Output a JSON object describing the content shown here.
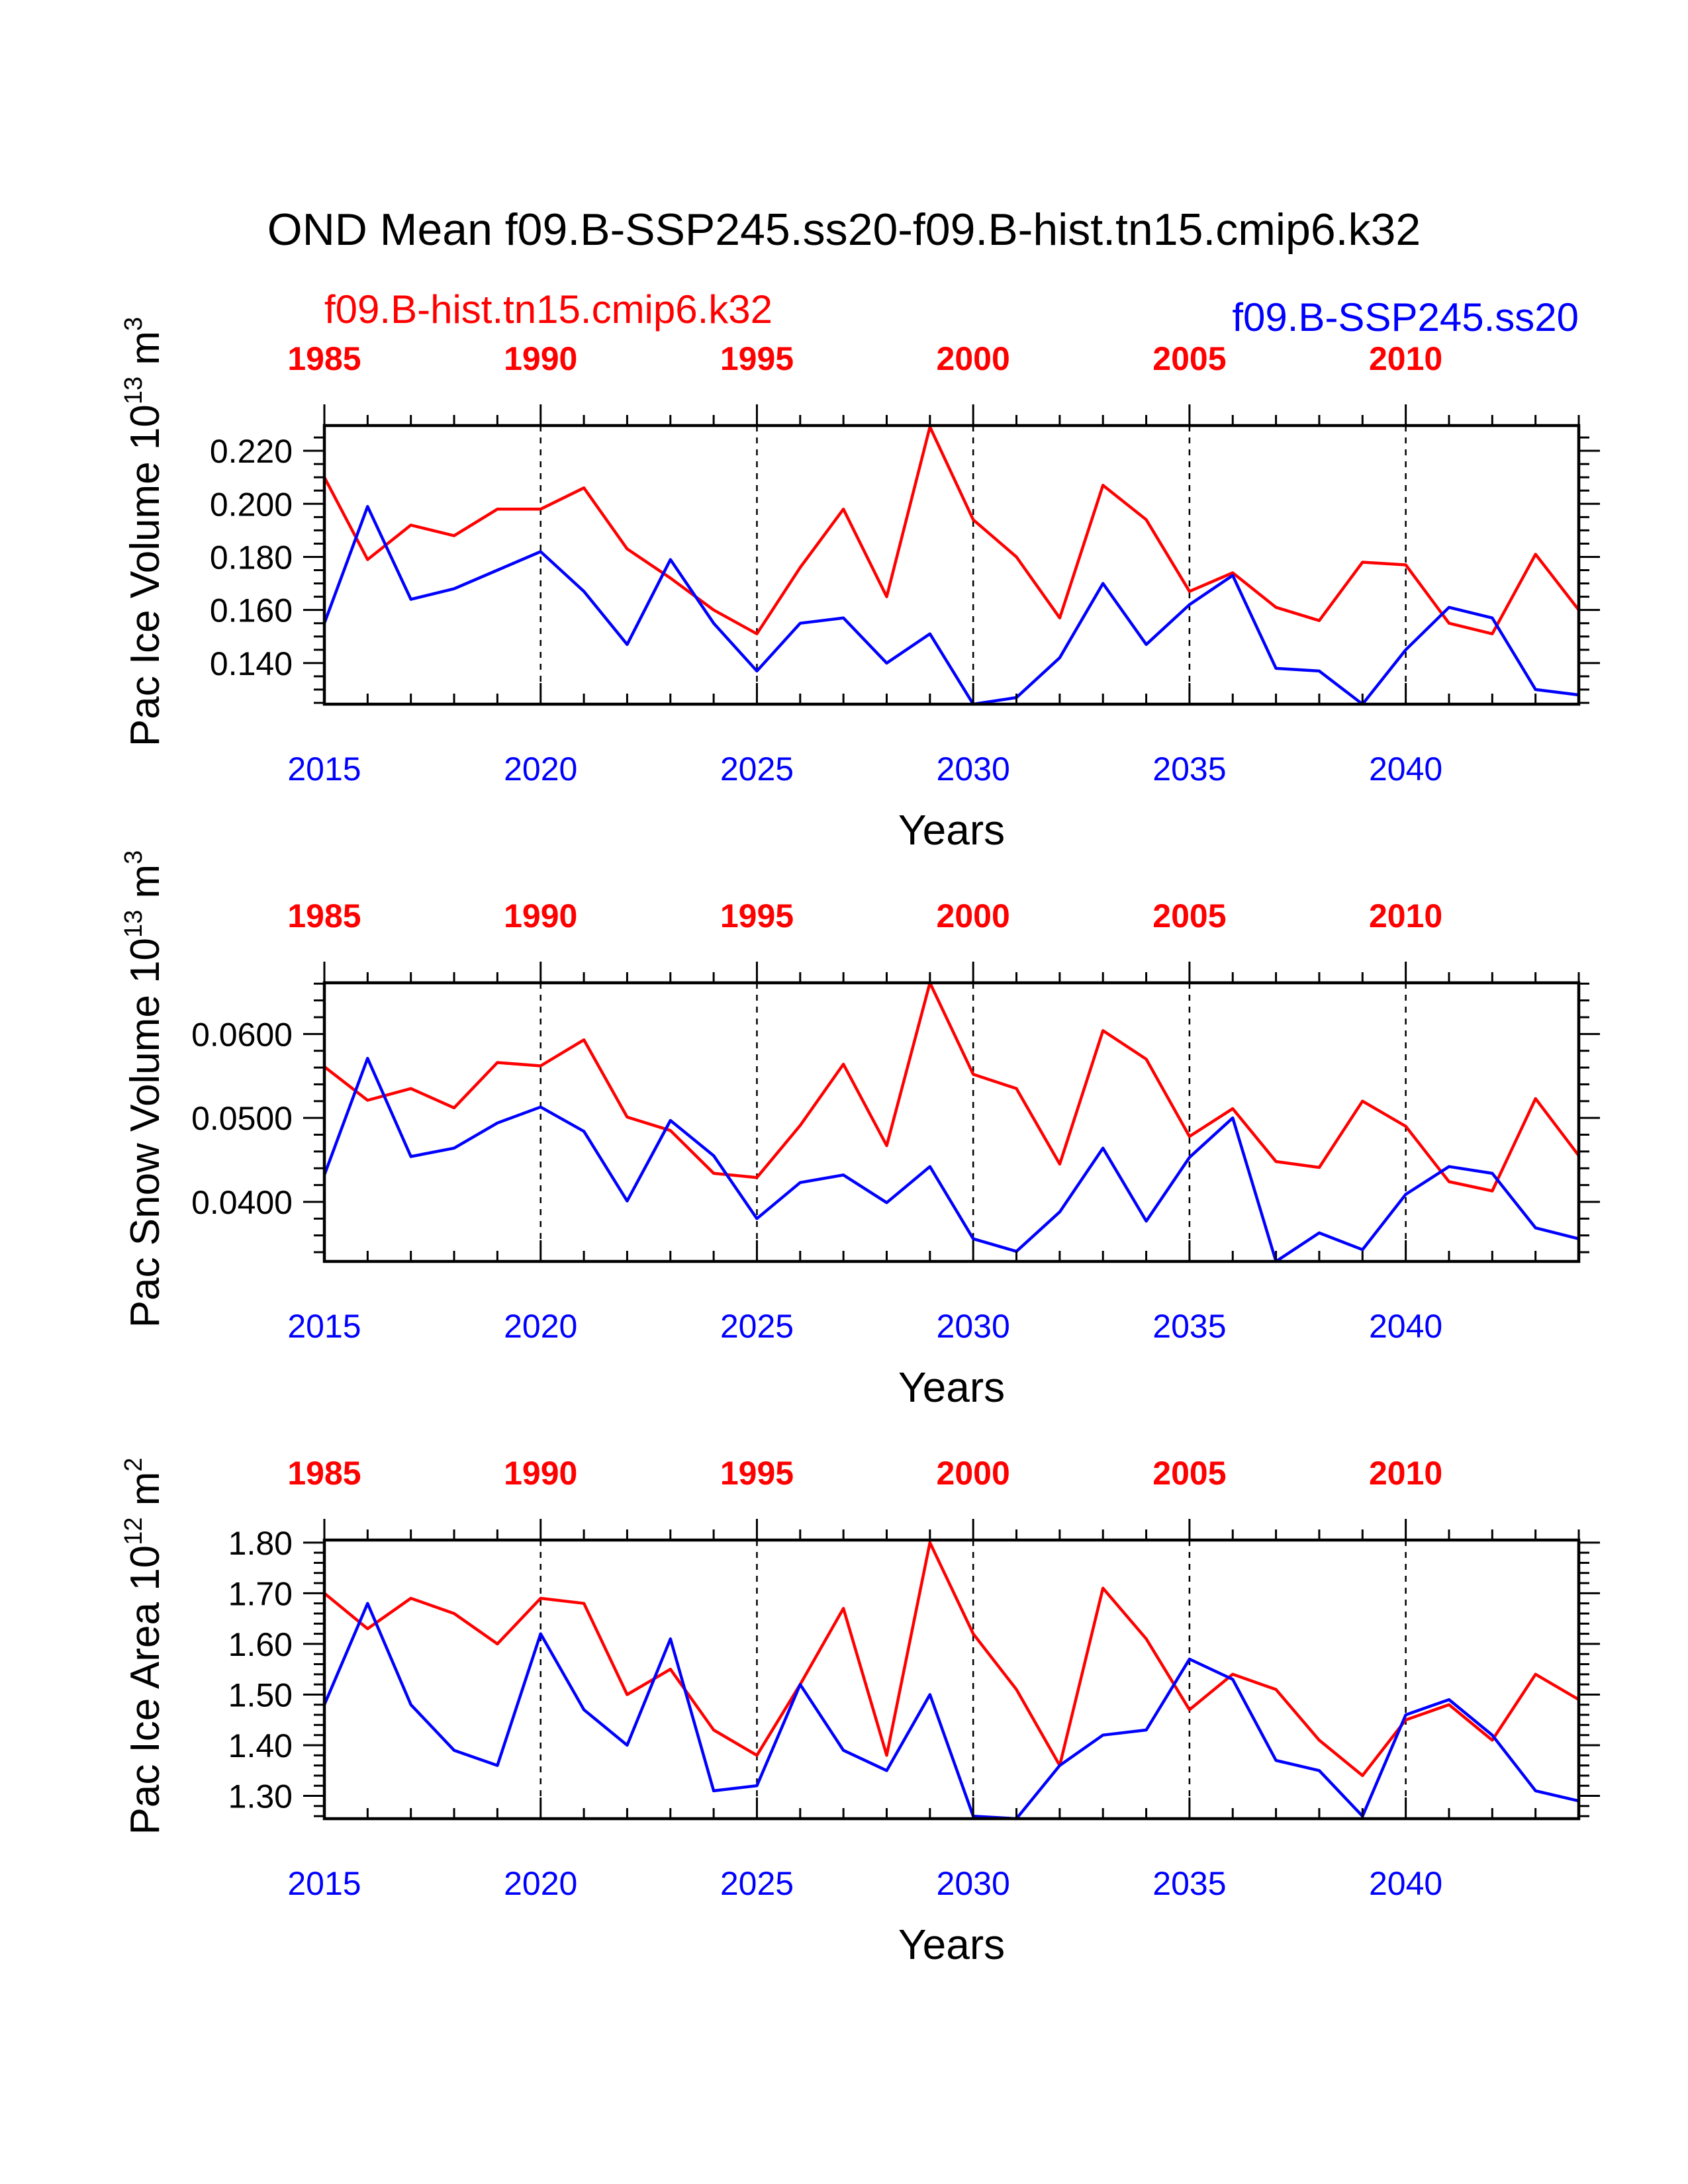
{
  "title": "OND Mean f09.B-SSP245.ss20-f09.B-hist.tn15.cmip6.k32",
  "legend": {
    "left_label": "f09.B-hist.tn15.cmip6.k32",
    "right_label": "f09.B-SSP245.ss20"
  },
  "colors": {
    "hist": "#ff0000",
    "ssp": "#0000ff",
    "axis": "#000000"
  },
  "chart_data": [
    {
      "type": "line",
      "ylabel": "Pac Ice Volume 10",
      "ylabel_exp": "13",
      "ylabel_unit": " m",
      "ylabel_unit_exp": "3",
      "xlabel": "Years",
      "xlim": [
        2015,
        2044
      ],
      "ylim": [
        0.1245,
        0.2295
      ],
      "yticks": [
        0.14,
        0.16,
        0.18,
        0.2,
        0.22
      ],
      "ytick_labels": [
        "0.140",
        "0.160",
        "0.180",
        "0.200",
        "0.220"
      ],
      "yminor_step": 0.005,
      "bottom_ticks": [
        2015,
        2020,
        2025,
        2030,
        2035,
        2040
      ],
      "top_ticks": [
        1985,
        1990,
        1995,
        2000,
        2005,
        2010
      ],
      "top_offset": 30,
      "dashed_at": [
        2020,
        2025,
        2030,
        2035,
        2040
      ],
      "series": [
        {
          "name": "f09.B-hist.tn15.cmip6.k32",
          "color_key": "hist",
          "x": [
            2015,
            2016,
            2017,
            2018,
            2019,
            2020,
            2021,
            2022,
            2023,
            2024,
            2025,
            2026,
            2027,
            2028,
            2029,
            2030,
            2031,
            2032,
            2033,
            2034,
            2035,
            2036,
            2037,
            2038,
            2039,
            2040,
            2041,
            2042,
            2043,
            2044
          ],
          "values": [
            0.21,
            0.179,
            0.192,
            0.188,
            0.198,
            0.198,
            0.206,
            0.183,
            0.172,
            0.16,
            0.151,
            0.176,
            0.198,
            0.165,
            0.229,
            0.194,
            0.18,
            0.157,
            0.207,
            0.194,
            0.167,
            0.174,
            0.161,
            0.156,
            0.178,
            0.177,
            0.155,
            0.151,
            0.181,
            0.16
          ]
        },
        {
          "name": "f09.B-SSP245.ss20",
          "color_key": "ssp",
          "x": [
            2015,
            2016,
            2017,
            2018,
            2019,
            2020,
            2021,
            2022,
            2023,
            2024,
            2025,
            2026,
            2027,
            2028,
            2029,
            2030,
            2031,
            2032,
            2033,
            2034,
            2035,
            2036,
            2037,
            2038,
            2039,
            2040,
            2041,
            2042,
            2043,
            2044
          ],
          "values": [
            0.155,
            0.199,
            0.164,
            0.168,
            0.175,
            0.182,
            0.167,
            0.147,
            0.179,
            0.155,
            0.137,
            0.155,
            0.157,
            0.14,
            0.151,
            0.1245,
            0.127,
            0.142,
            0.17,
            0.147,
            0.162,
            0.173,
            0.138,
            0.137,
            0.1245,
            0.145,
            0.161,
            0.157,
            0.13,
            0.128
          ]
        }
      ]
    },
    {
      "type": "line",
      "ylabel": "Pac Snow Volume 10",
      "ylabel_exp": "13",
      "ylabel_unit": " m",
      "ylabel_unit_exp": "3",
      "xlabel": "Years",
      "xlim": [
        2015,
        2044
      ],
      "ylim": [
        0.0329,
        0.0661
      ],
      "yticks": [
        0.04,
        0.05,
        0.06
      ],
      "ytick_labels": [
        "0.0400",
        "0.0500",
        "0.0600"
      ],
      "yminor_step": 0.002,
      "bottom_ticks": [
        2015,
        2020,
        2025,
        2030,
        2035,
        2040
      ],
      "top_ticks": [
        1985,
        1990,
        1995,
        2000,
        2005,
        2010
      ],
      "top_offset": 30,
      "dashed_at": [
        2020,
        2025,
        2030,
        2035,
        2040
      ],
      "series": [
        {
          "name": "f09.B-hist.tn15.cmip6.k32",
          "color_key": "hist",
          "x": [
            2015,
            2016,
            2017,
            2018,
            2019,
            2020,
            2021,
            2022,
            2023,
            2024,
            2025,
            2026,
            2027,
            2028,
            2029,
            2030,
            2031,
            2032,
            2033,
            2034,
            2035,
            2036,
            2037,
            2038,
            2039,
            2040,
            2041,
            2042,
            2043,
            2044
          ],
          "values": [
            0.0561,
            0.0521,
            0.0535,
            0.0512,
            0.0566,
            0.0562,
            0.0593,
            0.0501,
            0.0485,
            0.0434,
            0.0429,
            0.0491,
            0.0564,
            0.0467,
            0.0661,
            0.0552,
            0.0535,
            0.0445,
            0.0604,
            0.057,
            0.0478,
            0.0511,
            0.0448,
            0.0441,
            0.052,
            0.049,
            0.0424,
            0.0413,
            0.0523,
            0.0455
          ]
        },
        {
          "name": "f09.B-SSP245.ss20",
          "color_key": "ssp",
          "x": [
            2015,
            2016,
            2017,
            2018,
            2019,
            2020,
            2021,
            2022,
            2023,
            2024,
            2025,
            2026,
            2027,
            2028,
            2029,
            2030,
            2031,
            2032,
            2033,
            2034,
            2035,
            2036,
            2037,
            2038,
            2039,
            2040,
            2041,
            2042,
            2043,
            2044
          ],
          "values": [
            0.0432,
            0.0571,
            0.0454,
            0.0464,
            0.0494,
            0.0513,
            0.0484,
            0.0401,
            0.0497,
            0.0455,
            0.038,
            0.0423,
            0.0432,
            0.0399,
            0.0442,
            0.0356,
            0.0341,
            0.0388,
            0.0464,
            0.0377,
            0.0453,
            0.05,
            0.0329,
            0.0363,
            0.0343,
            0.0409,
            0.0442,
            0.0434,
            0.0369,
            0.0356
          ]
        }
      ]
    },
    {
      "type": "line",
      "ylabel": "Pac Ice Area 10",
      "ylabel_exp": "12",
      "ylabel_unit": " m",
      "ylabel_unit_exp": "2",
      "xlabel": "Years",
      "xlim": [
        2015,
        2044
      ],
      "ylim": [
        1.255,
        1.805
      ],
      "yticks": [
        1.3,
        1.4,
        1.5,
        1.6,
        1.7,
        1.8
      ],
      "ytick_labels": [
        "1.30",
        "1.40",
        "1.50",
        "1.60",
        "1.70",
        "1.80"
      ],
      "yminor_step": 0.02,
      "bottom_ticks": [
        2015,
        2020,
        2025,
        2030,
        2035,
        2040
      ],
      "top_ticks": [
        1985,
        1990,
        1995,
        2000,
        2005,
        2010
      ],
      "top_offset": 30,
      "dashed_at": [
        2020,
        2025,
        2030,
        2035,
        2040
      ],
      "series": [
        {
          "name": "f09.B-hist.tn15.cmip6.k32",
          "color_key": "hist",
          "x": [
            2015,
            2016,
            2017,
            2018,
            2019,
            2020,
            2021,
            2022,
            2023,
            2024,
            2025,
            2026,
            2027,
            2028,
            2029,
            2030,
            2031,
            2032,
            2033,
            2034,
            2035,
            2036,
            2037,
            2038,
            2039,
            2040,
            2041,
            2042,
            2043,
            2044
          ],
          "values": [
            1.7,
            1.63,
            1.69,
            1.66,
            1.6,
            1.69,
            1.68,
            1.5,
            1.55,
            1.43,
            1.38,
            1.52,
            1.67,
            1.38,
            1.8,
            1.62,
            1.51,
            1.36,
            1.71,
            1.61,
            1.47,
            1.54,
            1.51,
            1.41,
            1.34,
            1.45,
            1.48,
            1.41,
            1.54,
            1.49
          ]
        },
        {
          "name": "f09.B-SSP245.ss20",
          "color_key": "ssp",
          "x": [
            2015,
            2016,
            2017,
            2018,
            2019,
            2020,
            2021,
            2022,
            2023,
            2024,
            2025,
            2026,
            2027,
            2028,
            2029,
            2030,
            2031,
            2032,
            2033,
            2034,
            2035,
            2036,
            2037,
            2038,
            2039,
            2040,
            2041,
            2042,
            2043,
            2044
          ],
          "values": [
            1.48,
            1.68,
            1.48,
            1.39,
            1.36,
            1.62,
            1.47,
            1.4,
            1.61,
            1.31,
            1.32,
            1.52,
            1.39,
            1.35,
            1.5,
            1.26,
            1.255,
            1.36,
            1.42,
            1.43,
            1.57,
            1.53,
            1.37,
            1.35,
            1.26,
            1.46,
            1.49,
            1.42,
            1.31,
            1.29
          ]
        }
      ]
    }
  ]
}
